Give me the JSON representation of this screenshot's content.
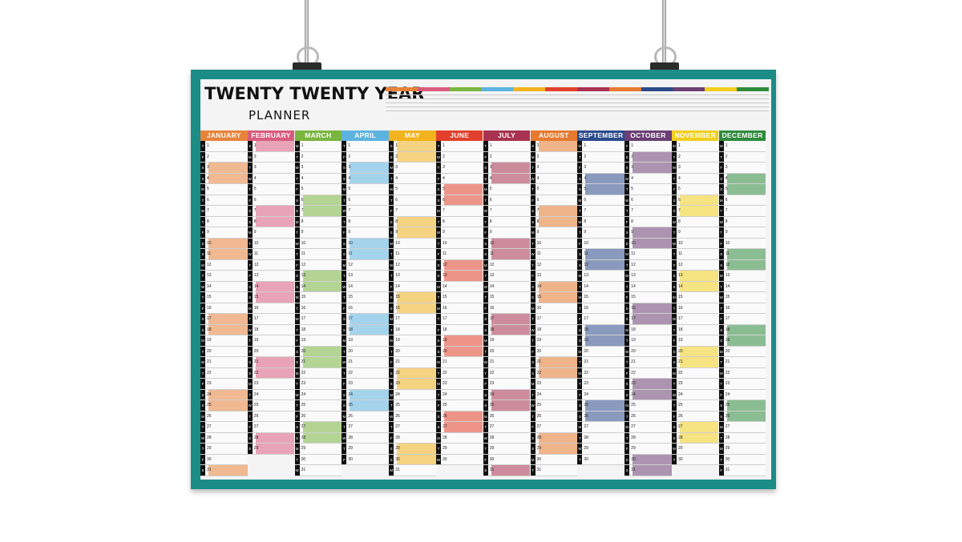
{
  "poster": {
    "title": "TWENTY TWENTY YEAR",
    "subtitle": "PLANNER"
  },
  "colors": {
    "frame": "#1b8c86",
    "january": "#e8833a",
    "february": "#d95c7e",
    "march": "#7ab53f",
    "april": "#5db3e0",
    "may": "#f2b31e",
    "june": "#e2402c",
    "july": "#a8324f",
    "august": "#e67a2e",
    "september": "#2b4a8c",
    "october": "#6b3f73",
    "november": "#f2cf1e",
    "december": "#2f8a3c"
  },
  "months": [
    {
      "name": "JANUARY",
      "color": "#e8833a",
      "start": 3,
      "days": 31
    },
    {
      "name": "FEBRUARY",
      "color": "#d95c7e",
      "start": 6,
      "days": 29
    },
    {
      "name": "MARCH",
      "color": "#7ab53f",
      "start": 0,
      "days": 31
    },
    {
      "name": "APRIL",
      "color": "#5db3e0",
      "start": 3,
      "days": 30
    },
    {
      "name": "MAY",
      "color": "#f2b31e",
      "start": 5,
      "days": 31
    },
    {
      "name": "JUNE",
      "color": "#e2402c",
      "start": 1,
      "days": 30
    },
    {
      "name": "JULY",
      "color": "#a8324f",
      "start": 3,
      "days": 31
    },
    {
      "name": "AUGUST",
      "color": "#e67a2e",
      "start": 6,
      "days": 31
    },
    {
      "name": "SEPTEMBER",
      "color": "#2b4a8c",
      "start": 2,
      "days": 30
    },
    {
      "name": "OCTOBER",
      "color": "#6b3f73",
      "start": 4,
      "days": 31
    },
    {
      "name": "NOVEMBER",
      "color": "#f2cf1e",
      "start": 0,
      "days": 30
    },
    {
      "name": "DECEMBER",
      "color": "#2f8a3c",
      "start": 2,
      "days": 31
    }
  ],
  "weekday_letters": [
    "M",
    "T",
    "W",
    "T",
    "F",
    "S",
    "S"
  ]
}
